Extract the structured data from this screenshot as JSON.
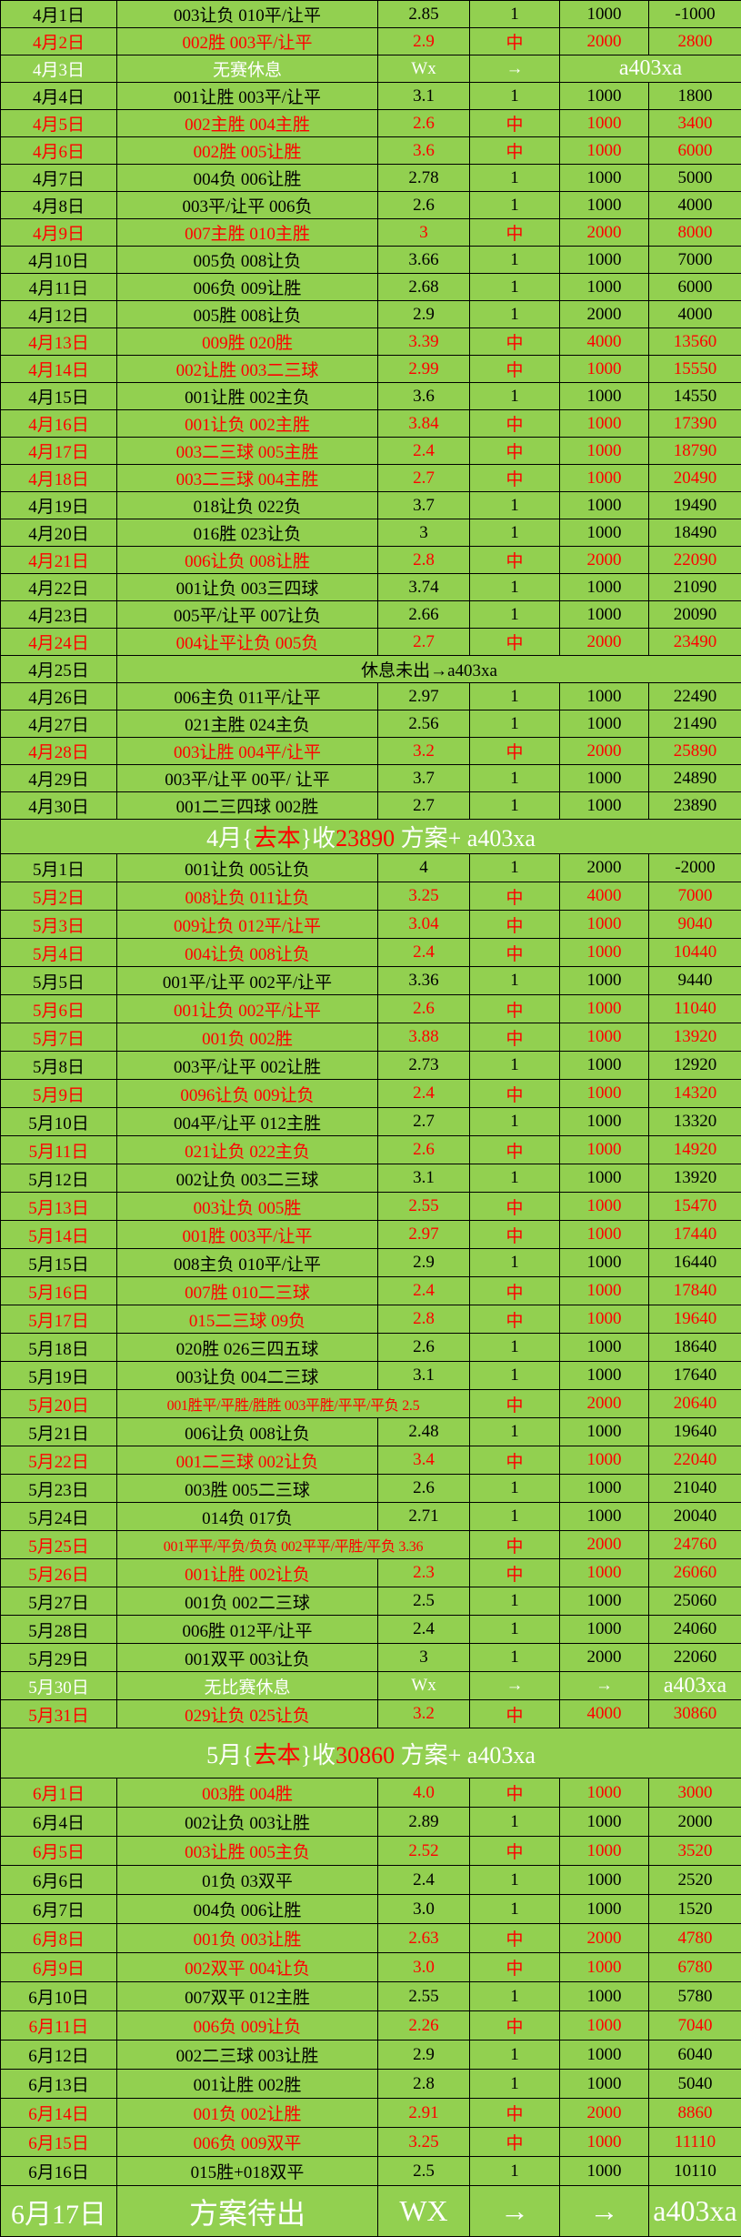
{
  "colors": {
    "background": "#92D050",
    "win_text": "#FF0000",
    "normal_text": "#000000",
    "rest_text": "#FFFFFF"
  },
  "sections": [
    {
      "key": "apr",
      "rows": [
        {
          "date": "4月1日",
          "pick": "003让负 010平/让平",
          "odds": "2.85",
          "result": "1",
          "stake": "1000",
          "total": "-1000",
          "win": false
        },
        {
          "date": "4月2日",
          "pick": "002胜 003平/让平",
          "odds": "2.9",
          "result": "中",
          "stake": "2000",
          "total": "2800",
          "win": true
        },
        {
          "kind": "rest",
          "date": "4月3日",
          "pick": "无赛休息",
          "odds": "Wx",
          "result": "→",
          "tag": "a403xa"
        },
        {
          "date": "4月4日",
          "pick": "001让胜 003平/让平",
          "odds": "3.1",
          "result": "1",
          "stake": "1000",
          "total": "1800",
          "win": false
        },
        {
          "date": "4月5日",
          "pick": "002主胜 004主胜",
          "odds": "2.6",
          "result": "中",
          "stake": "1000",
          "total": "3400",
          "win": true
        },
        {
          "date": "4月6日",
          "pick": "002胜 005让胜",
          "odds": "3.6",
          "result": "中",
          "stake": "1000",
          "total": "6000",
          "win": true
        },
        {
          "date": "4月7日",
          "pick": "004负 006让胜",
          "odds": "2.78",
          "result": "1",
          "stake": "1000",
          "total": "5000",
          "win": false
        },
        {
          "date": "4月8日",
          "pick": "003平/让平 006负",
          "odds": "2.6",
          "result": "1",
          "stake": "1000",
          "total": "4000",
          "win": false
        },
        {
          "date": "4月9日",
          "pick": "007主胜 010主胜",
          "odds": "3",
          "result": "中",
          "stake": "2000",
          "total": "8000",
          "win": true
        },
        {
          "date": "4月10日",
          "pick": "005负 008让负",
          "odds": "3.66",
          "result": "1",
          "stake": "1000",
          "total": "7000",
          "win": false
        },
        {
          "date": "4月11日",
          "pick": "006负 009让胜",
          "odds": "2.68",
          "result": "1",
          "stake": "1000",
          "total": "6000",
          "win": false
        },
        {
          "date": "4月12日",
          "pick": "005胜 008让负",
          "odds": "2.9",
          "result": "1",
          "stake": "2000",
          "total": "4000",
          "win": false
        },
        {
          "date": "4月13日",
          "pick": "009胜 020胜",
          "odds": "3.39",
          "result": "中",
          "stake": "4000",
          "total": "13560",
          "win": true
        },
        {
          "date": "4月14日",
          "pick": "002让胜 003二三球",
          "odds": "2.99",
          "result": "中",
          "stake": "1000",
          "total": "15550",
          "win": true
        },
        {
          "date": "4月15日",
          "pick": "001让胜 002主负",
          "odds": "3.6",
          "result": "1",
          "stake": "1000",
          "total": "14550",
          "win": false
        },
        {
          "date": "4月16日",
          "pick": "001让负 002主胜",
          "odds": "3.84",
          "result": "中",
          "stake": "1000",
          "total": "17390",
          "win": true
        },
        {
          "date": "4月17日",
          "pick": "003二三球 005主胜",
          "odds": "2.4",
          "result": "中",
          "stake": "1000",
          "total": "18790",
          "win": true
        },
        {
          "date": "4月18日",
          "pick": "003二三球 004主胜",
          "odds": "2.7",
          "result": "中",
          "stake": "1000",
          "total": "20490",
          "win": true
        },
        {
          "date": "4月19日",
          "pick": "018让负 022负",
          "odds": "3.7",
          "result": "1",
          "stake": "1000",
          "total": "19490",
          "win": false
        },
        {
          "date": "4月20日",
          "pick": "016胜 023让负",
          "odds": "3",
          "result": "1",
          "stake": "1000",
          "total": "18490",
          "win": false
        },
        {
          "date": "4月21日",
          "pick": "006让负 008让胜",
          "odds": "2.8",
          "result": "中",
          "stake": "2000",
          "total": "22090",
          "win": true
        },
        {
          "date": "4月22日",
          "pick": "001让负 003三四球",
          "odds": "3.74",
          "result": "1",
          "stake": "1000",
          "total": "21090",
          "win": false
        },
        {
          "date": "4月23日",
          "pick": "005平/让平 007让负",
          "odds": "2.66",
          "result": "1",
          "stake": "1000",
          "total": "20090",
          "win": false
        },
        {
          "date": "4月24日",
          "pick": "004让平让负 005负",
          "odds": "2.7",
          "result": "中",
          "stake": "2000",
          "total": "23490",
          "win": true
        },
        {
          "kind": "note",
          "date": "4月25日",
          "note": "休息未出→a403xa"
        },
        {
          "date": "4月26日",
          "pick": "006主负 011平/让平",
          "odds": "2.97",
          "result": "1",
          "stake": "1000",
          "total": "22490",
          "win": false
        },
        {
          "date": "4月27日",
          "pick": "021主胜 024主负",
          "odds": "2.56",
          "result": "1",
          "stake": "1000",
          "total": "21490",
          "win": false
        },
        {
          "date": "4月28日",
          "pick": "003让胜 004平/让平",
          "odds": "3.2",
          "result": "中",
          "stake": "2000",
          "total": "25890",
          "win": true
        },
        {
          "date": "4月29日",
          "pick": "003平/让平 00平/ 让平",
          "odds": "3.7",
          "result": "1",
          "stake": "1000",
          "total": "24890",
          "win": false
        },
        {
          "date": "4月30日",
          "pick": "001二三四球 002胜",
          "odds": "2.7",
          "result": "1",
          "stake": "1000",
          "total": "23890",
          "win": false
        }
      ],
      "summary": {
        "month": "4月{",
        "label": "去本",
        "mid": "}收",
        "amount": "23890",
        "tail": " 方案+ a403xa"
      }
    },
    {
      "key": "may",
      "rows": [
        {
          "date": "5月1日",
          "pick": "001让负 005让负",
          "odds": "4",
          "result": "1",
          "stake": "2000",
          "total": "-2000",
          "win": false
        },
        {
          "date": "5月2日",
          "pick": "008让负 011让负",
          "odds": "3.25",
          "result": "中",
          "stake": "4000",
          "total": "7000",
          "win": true
        },
        {
          "date": "5月3日",
          "pick": "009让负 012平/让平",
          "odds": "3.04",
          "result": "中",
          "stake": "1000",
          "total": "9040",
          "win": true
        },
        {
          "date": "5月4日",
          "pick": "004让负 008让负",
          "odds": "2.4",
          "result": "中",
          "stake": "1000",
          "total": "10440",
          "win": true
        },
        {
          "date": "5月5日",
          "pick": "001平/让平 002平/让平",
          "odds": "3.36",
          "result": "1",
          "stake": "1000",
          "total": "9440",
          "win": false
        },
        {
          "date": "5月6日",
          "pick": "001让负 002平/让平",
          "odds": "2.6",
          "result": "中",
          "stake": "1000",
          "total": "11040",
          "win": true
        },
        {
          "date": "5月7日",
          "pick": "001负 002胜",
          "odds": "3.88",
          "result": "中",
          "stake": "1000",
          "total": "13920",
          "win": true
        },
        {
          "date": "5月8日",
          "pick": "003平/让平 002让胜",
          "odds": "2.73",
          "result": "1",
          "stake": "1000",
          "total": "12920",
          "win": false
        },
        {
          "date": "5月9日",
          "pick": "0096让负 009让负",
          "odds": "2.4",
          "result": "中",
          "stake": "1000",
          "total": "14320",
          "win": true
        },
        {
          "date": "5月10日",
          "pick": "004平/让平 012主胜",
          "odds": "2.7",
          "result": "1",
          "stake": "1000",
          "total": "13320",
          "win": false
        },
        {
          "date": "5月11日",
          "pick": "021让负 022主负",
          "odds": "2.6",
          "result": "中",
          "stake": "1000",
          "total": "14920",
          "win": true
        },
        {
          "date": "5月12日",
          "pick": "002让负 003二三球",
          "odds": "3.1",
          "result": "1",
          "stake": "1000",
          "total": "13920",
          "win": false
        },
        {
          "date": "5月13日",
          "pick": "003让负 005胜",
          "odds": "2.55",
          "result": "中",
          "stake": "1000",
          "total": "15470",
          "win": true
        },
        {
          "date": "5月14日",
          "pick": "001胜 003平/让平",
          "odds": "2.97",
          "result": "中",
          "stake": "1000",
          "total": "17440",
          "win": true
        },
        {
          "date": "5月15日",
          "pick": "008主负 010平/让平",
          "odds": "2.9",
          "result": "1",
          "stake": "1000",
          "total": "16440",
          "win": false
        },
        {
          "date": "5月16日",
          "pick": "007胜  010二三球",
          "odds": "2.4",
          "result": "中",
          "stake": "1000",
          "total": "17840",
          "win": true
        },
        {
          "date": "5月17日",
          "pick": "015二三球 09负",
          "odds": "2.8",
          "result": "中",
          "stake": "1000",
          "total": "19640",
          "win": true
        },
        {
          "date": "5月18日",
          "pick": "020胜 026三四五球",
          "odds": "2.6",
          "result": "1",
          "stake": "1000",
          "total": "18640",
          "win": false
        },
        {
          "date": "5月19日",
          "pick": "003让负 004二三球",
          "odds": "3.1",
          "result": "1",
          "stake": "1000",
          "total": "17640",
          "win": false
        },
        {
          "kind": "wide",
          "date": "5月20日",
          "pick": "001胜平/平胜/胜胜 003平胜/平平/平负",
          "odds": "2.5",
          "result": "中",
          "stake": "2000",
          "total": "20640",
          "win": true
        },
        {
          "date": "5月21日",
          "pick": "006让负 008让负",
          "odds": "2.48",
          "result": "1",
          "stake": "1000",
          "total": "19640",
          "win": false
        },
        {
          "date": "5月22日",
          "pick": "001二三球 002让负",
          "odds": "3.4",
          "result": "中",
          "stake": "1000",
          "total": "22040",
          "win": true
        },
        {
          "date": "5月23日",
          "pick": "003胜 005二三球",
          "odds": "2.6",
          "result": "1",
          "stake": "1000",
          "total": "21040",
          "win": false
        },
        {
          "date": "5月24日",
          "pick": "014负 017负",
          "odds": "2.71",
          "result": "1",
          "stake": "1000",
          "total": "20040",
          "win": false
        },
        {
          "kind": "wide",
          "date": "5月25日",
          "pick": "001平平/平负/负负 002平平/平胜/平负",
          "odds": "3.36",
          "result": "中",
          "stake": "2000",
          "total": "24760",
          "win": true
        },
        {
          "date": "5月26日",
          "pick": "001让胜 002让负",
          "odds": "2.3",
          "result": "中",
          "stake": "1000",
          "total": "26060",
          "win": true
        },
        {
          "date": "5月27日",
          "pick": "001负 002二三球",
          "odds": "2.5",
          "result": "1",
          "stake": "1000",
          "total": "25060",
          "win": false
        },
        {
          "date": "5月28日",
          "pick": "006胜 012平/让平",
          "odds": "2.4",
          "result": "1",
          "stake": "1000",
          "total": "24060",
          "win": false
        },
        {
          "date": "5月29日",
          "pick": "001双平 003让负",
          "odds": "3",
          "result": "1",
          "stake": "2000",
          "total": "22060",
          "win": false
        },
        {
          "kind": "rest2",
          "date": "5月30日",
          "pick": "无比赛休息",
          "odds": "Wx",
          "result": "→",
          "stake": "→",
          "tag": "a403xa"
        },
        {
          "date": "5月31日",
          "pick": "029让负 025让负",
          "odds": "3.2",
          "result": "中",
          "stake": "4000",
          "total": "30860",
          "win": true
        }
      ],
      "summary": {
        "month": "5月{",
        "label": "去本",
        "mid": "}收",
        "amount": "30860",
        "tail": " 方案+ a403xa"
      }
    },
    {
      "key": "jun",
      "rows": [
        {
          "date": "6月1日",
          "pick": "003胜 004胜",
          "odds": "4.0",
          "result": "中",
          "stake": "1000",
          "total": "3000",
          "win": true
        },
        {
          "date": "6月4日",
          "pick": "002让负 003让胜",
          "odds": "2.89",
          "result": "1",
          "stake": "1000",
          "total": "2000",
          "win": false
        },
        {
          "date": "6月5日",
          "pick": "003让胜  005主负",
          "odds": "2.52",
          "result": "中",
          "stake": "1000",
          "total": "3520",
          "win": true
        },
        {
          "date": "6月6日",
          "pick": "01负 03双平",
          "odds": "2.4",
          "result": "1",
          "stake": "1000",
          "total": "2520",
          "win": false
        },
        {
          "date": "6月7日",
          "pick": "004负 006让胜",
          "odds": "3.0",
          "result": "1",
          "stake": "1000",
          "total": "1520",
          "win": false
        },
        {
          "date": "6月8日",
          "pick": "001负 003让胜",
          "odds": "2.63",
          "result": "中",
          "stake": "2000",
          "total": "4780",
          "win": true
        },
        {
          "date": "6月9日",
          "pick": "002双平 004让负",
          "odds": "3.0",
          "result": "中",
          "stake": "1000",
          "total": "6780",
          "win": true
        },
        {
          "date": "6月10日",
          "pick": "007双平 012主胜",
          "odds": "2.55",
          "result": "1",
          "stake": "1000",
          "total": "5780",
          "win": false
        },
        {
          "date": "6月11日",
          "pick": "006负 009让负",
          "odds": "2.26",
          "result": "中",
          "stake": "1000",
          "total": "7040",
          "win": true
        },
        {
          "date": "6月12日",
          "pick": "002二三球 003让胜",
          "odds": "2.9",
          "result": "1",
          "stake": "1000",
          "total": "6040",
          "win": false
        },
        {
          "date": "6月13日",
          "pick": "001让胜 002胜",
          "odds": "2.8",
          "result": "1",
          "stake": "1000",
          "total": "5040",
          "win": false
        },
        {
          "date": "6月14日",
          "pick": "001负 002让胜",
          "odds": "2.91",
          "result": "中",
          "stake": "2000",
          "total": "8860",
          "win": true
        },
        {
          "date": "6月15日",
          "pick": "006负 009双平",
          "odds": "3.25",
          "result": "中",
          "stake": "1000",
          "total": "11110",
          "win": true
        },
        {
          "date": "6月16日",
          "pick": "015胜+018双平",
          "odds": "2.5",
          "result": "1",
          "stake": "1000",
          "total": "10110",
          "win": false
        }
      ]
    }
  ],
  "final": {
    "date": "6月17日",
    "pick": "方案待出",
    "odds": "WX",
    "result": "→",
    "stake": "→",
    "tag": "a403xa"
  }
}
